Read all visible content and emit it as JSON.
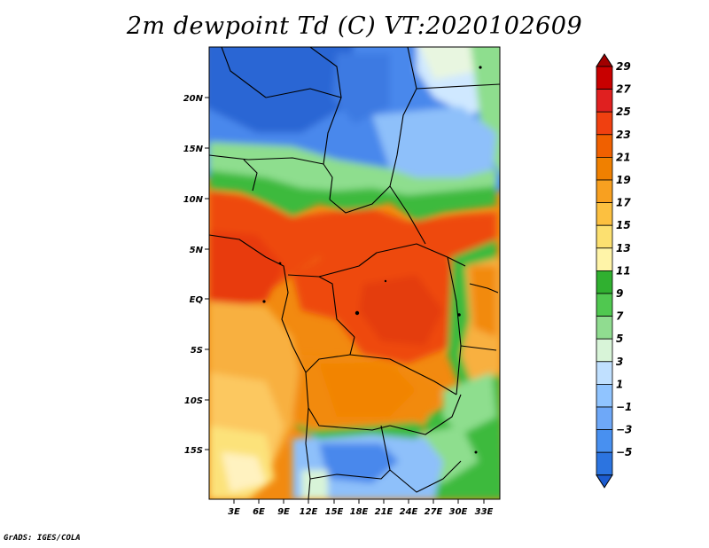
{
  "title": "2m dewpoint Td (C) VT:2020102609",
  "credit": "GrADS: IGES/COLA",
  "map": {
    "lat_ticks": [
      "20N",
      "15N",
      "10N",
      "5N",
      "EQ",
      "5S",
      "10S",
      "15S"
    ],
    "lon_ticks": [
      "3E",
      "6E",
      "9E",
      "12E",
      "15E",
      "18E",
      "21E",
      "24E",
      "27E",
      "30E",
      "33E"
    ],
    "lat_range_deg": [
      -20,
      25
    ],
    "lon_range_deg": [
      0,
      35
    ]
  },
  "colorbar": {
    "labels": [
      "29",
      "27",
      "25",
      "23",
      "21",
      "19",
      "17",
      "15",
      "13",
      "11",
      "9",
      "7",
      "5",
      "3",
      "1",
      "−1",
      "−3",
      "−5"
    ],
    "colors": [
      "#a00000",
      "#c80000",
      "#e02020",
      "#f04010",
      "#f06000",
      "#f08000",
      "#f8a020",
      "#fcc040",
      "#fce070",
      "#fff4a8",
      "#30b030",
      "#50c850",
      "#90dc90",
      "#d8f4d8",
      "#c0e0ff",
      "#90c4ff",
      "#6ea8f8",
      "#4890f0",
      "#2c74e0",
      "#1c5cd0"
    ]
  },
  "legend": {
    "field_colors": {
      "deep_blue": "#2a66d4",
      "blue": "#4a88ec",
      "light_blue": "#8ec0fa",
      "green": "#3cba3c",
      "light_green": "#8ede8e",
      "yellow": "#fce27a",
      "light_orange": "#f8b040",
      "orange": "#f28a10",
      "dark_orange": "#f06a06",
      "red_orange": "#ee4a0a"
    }
  }
}
